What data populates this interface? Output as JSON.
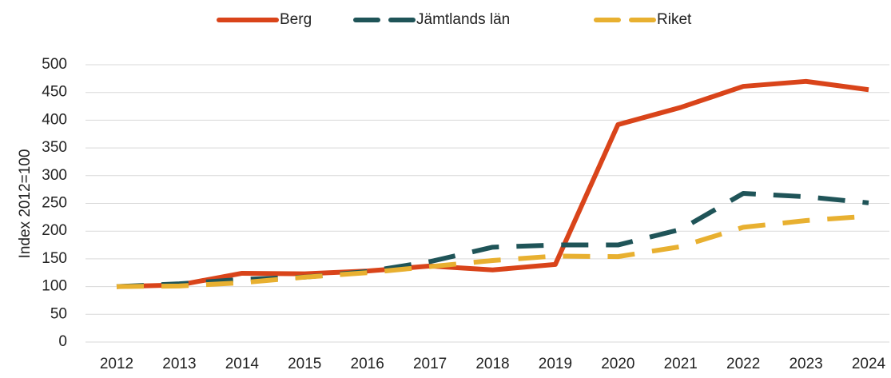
{
  "chart_data": {
    "type": "line",
    "y_label": "Index 2012=100",
    "categories": [
      "2012",
      "2013",
      "2014",
      "2015",
      "2016",
      "2017",
      "2018",
      "2019",
      "2020",
      "2021",
      "2022",
      "2023",
      "2024"
    ],
    "series": [
      {
        "name": "Berg",
        "color": "#d9441a",
        "dash": "solid",
        "values": [
          100,
          103,
          124,
          123,
          128,
          137,
          130,
          140,
          392,
          423,
          461,
          470,
          455
        ]
      },
      {
        "name": "Jämtlands län",
        "color": "#1f5458",
        "dash": "dashed",
        "values": [
          100,
          105,
          113,
          117,
          127,
          145,
          171,
          175,
          175,
          203,
          268,
          262,
          251
        ]
      },
      {
        "name": "Riket",
        "color": "#e8b030",
        "dash": "dashed",
        "values": [
          100,
          101,
          107,
          117,
          125,
          136,
          147,
          155,
          154,
          172,
          207,
          219,
          227
        ]
      }
    ],
    "ylim": [
      0,
      500
    ],
    "yticks": [
      0,
      50,
      100,
      150,
      200,
      250,
      300,
      350,
      400,
      450,
      500
    ],
    "grid": true,
    "legend": "top"
  }
}
